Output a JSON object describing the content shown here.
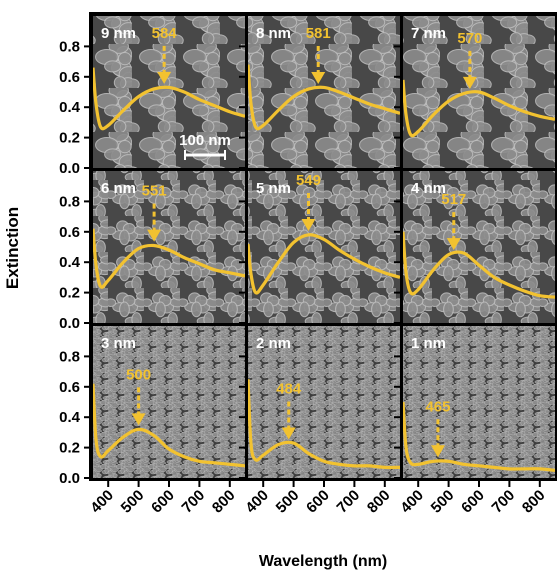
{
  "ylabel": "Extinction",
  "xlabel": "Wavelength (nm)",
  "chart_data": [
    {
      "type": "line",
      "label": "9 nm",
      "peak_label": 584,
      "scale_bar": "100 nm",
      "x": [
        350,
        360,
        375,
        400,
        450,
        500,
        550,
        600,
        650,
        700,
        750,
        800,
        850
      ],
      "series": [
        {
          "color": "#f2c230",
          "values": [
            0.66,
            0.42,
            0.27,
            0.28,
            0.38,
            0.47,
            0.52,
            0.53,
            0.5,
            0.45,
            0.41,
            0.37,
            0.34
          ]
        }
      ],
      "xlim": [
        350,
        850
      ],
      "xticks": [
        400,
        500,
        600,
        700,
        800
      ],
      "ylim": [
        0,
        1
      ],
      "yticks": [
        {
          "value": 0,
          "label": "0.0"
        },
        0.2,
        0.4,
        0.6,
        0.8
      ]
    },
    {
      "type": "line",
      "label": "8 nm",
      "peak_label": 581,
      "x": [
        350,
        360,
        375,
        400,
        450,
        500,
        550,
        600,
        650,
        700,
        750,
        800,
        850
      ],
      "series": [
        {
          "color": "#f2c230",
          "values": [
            0.68,
            0.42,
            0.27,
            0.28,
            0.38,
            0.47,
            0.52,
            0.53,
            0.5,
            0.46,
            0.42,
            0.39,
            0.36
          ]
        }
      ],
      "xlim": [
        350,
        850
      ],
      "xticks": [
        400,
        500,
        600,
        700,
        800
      ],
      "ylim": [
        0,
        1
      ],
      "yticks": [
        {
          "value": 0,
          "label": "0.0"
        },
        0.2,
        0.4,
        0.6,
        0.8
      ]
    },
    {
      "type": "line",
      "label": "7 nm",
      "peak_label": 570,
      "x": [
        350,
        360,
        375,
        400,
        450,
        500,
        550,
        600,
        650,
        700,
        750,
        800,
        850
      ],
      "series": [
        {
          "color": "#f2c230",
          "values": [
            0.58,
            0.35,
            0.22,
            0.24,
            0.35,
            0.44,
            0.49,
            0.5,
            0.46,
            0.41,
            0.37,
            0.34,
            0.32
          ]
        }
      ],
      "xlim": [
        350,
        850
      ],
      "xticks": [
        400,
        500,
        600,
        700,
        800
      ],
      "ylim": [
        0,
        1
      ],
      "yticks": [
        {
          "value": 0,
          "label": "0.0"
        },
        0.2,
        0.4,
        0.6,
        0.8
      ]
    },
    {
      "type": "line",
      "label": "6 nm",
      "peak_label": 551,
      "x": [
        350,
        360,
        375,
        400,
        450,
        500,
        550,
        600,
        650,
        700,
        750,
        800,
        850
      ],
      "series": [
        {
          "color": "#f2c230",
          "values": [
            0.62,
            0.38,
            0.24,
            0.28,
            0.4,
            0.49,
            0.51,
            0.48,
            0.43,
            0.39,
            0.35,
            0.33,
            0.31
          ]
        }
      ],
      "xlim": [
        350,
        850
      ],
      "xticks": [
        400,
        500,
        600,
        700,
        800
      ],
      "ylim": [
        0,
        1
      ],
      "yticks": [
        {
          "value": 0,
          "label": "0.0"
        },
        0.2,
        0.4,
        0.6,
        0.8
      ]
    },
    {
      "type": "line",
      "label": "5 nm",
      "peak_label": 549,
      "x": [
        350,
        360,
        375,
        400,
        450,
        500,
        550,
        600,
        650,
        700,
        750,
        800,
        850
      ],
      "series": [
        {
          "color": "#f2c230",
          "values": [
            0.52,
            0.32,
            0.2,
            0.25,
            0.4,
            0.53,
            0.58,
            0.55,
            0.48,
            0.42,
            0.37,
            0.33,
            0.3
          ]
        }
      ],
      "xlim": [
        350,
        850
      ],
      "xticks": [
        400,
        500,
        600,
        700,
        800
      ],
      "ylim": [
        0,
        1
      ],
      "yticks": [
        {
          "value": 0,
          "label": "0.0"
        },
        0.2,
        0.4,
        0.6,
        0.8
      ]
    },
    {
      "type": "line",
      "label": "4 nm",
      "peak_label": 517,
      "x": [
        350,
        360,
        375,
        400,
        450,
        500,
        550,
        600,
        650,
        700,
        750,
        800,
        850
      ],
      "series": [
        {
          "color": "#f2c230",
          "values": [
            0.6,
            0.33,
            0.2,
            0.22,
            0.35,
            0.45,
            0.46,
            0.38,
            0.3,
            0.25,
            0.21,
            0.18,
            0.17
          ]
        }
      ],
      "xlim": [
        350,
        850
      ],
      "xticks": [
        400,
        500,
        600,
        700,
        800
      ],
      "ylim": [
        0,
        1
      ],
      "yticks": [
        {
          "value": 0,
          "label": "0.0"
        },
        0.2,
        0.4,
        0.6,
        0.8
      ]
    },
    {
      "type": "line",
      "label": "3 nm",
      "peak_label": 500,
      "x": [
        350,
        360,
        375,
        400,
        450,
        500,
        550,
        600,
        650,
        700,
        750,
        800,
        850
      ],
      "series": [
        {
          "color": "#f2c230",
          "values": [
            0.62,
            0.25,
            0.14,
            0.18,
            0.27,
            0.32,
            0.28,
            0.19,
            0.14,
            0.11,
            0.1,
            0.09,
            0.08
          ]
        }
      ],
      "xlim": [
        350,
        850
      ],
      "xticks": [
        400,
        500,
        600,
        700,
        800
      ],
      "ylim": [
        0,
        1
      ],
      "yticks": [
        {
          "value": 0,
          "label": "0.0"
        },
        0.2,
        0.4,
        0.6,
        0.8
      ]
    },
    {
      "type": "line",
      "label": "2 nm",
      "peak_label": 484,
      "x": [
        350,
        360,
        375,
        400,
        450,
        500,
        550,
        600,
        650,
        700,
        750,
        800,
        850
      ],
      "series": [
        {
          "color": "#f2c230",
          "values": [
            0.65,
            0.22,
            0.12,
            0.15,
            0.22,
            0.23,
            0.16,
            0.11,
            0.09,
            0.08,
            0.08,
            0.07,
            0.07
          ]
        }
      ],
      "xlim": [
        350,
        850
      ],
      "xticks": [
        400,
        500,
        600,
        700,
        800
      ],
      "ylim": [
        0,
        1
      ],
      "yticks": [
        {
          "value": 0,
          "label": "0.0"
        },
        0.2,
        0.4,
        0.6,
        0.8
      ]
    },
    {
      "type": "line",
      "label": "1 nm",
      "peak_label": 465,
      "x": [
        350,
        360,
        375,
        400,
        450,
        500,
        550,
        600,
        650,
        700,
        750,
        800,
        850
      ],
      "series": [
        {
          "color": "#f2c230",
          "values": [
            0.5,
            0.2,
            0.1,
            0.09,
            0.11,
            0.11,
            0.09,
            0.08,
            0.07,
            0.06,
            0.06,
            0.06,
            0.05
          ]
        }
      ],
      "xlim": [
        350,
        850
      ],
      "xticks": [
        400,
        500,
        600,
        700,
        800
      ],
      "ylim": [
        0,
        1
      ],
      "yticks": [
        {
          "value": 0,
          "label": "0.0"
        },
        0.2,
        0.4,
        0.6,
        0.8
      ]
    }
  ]
}
